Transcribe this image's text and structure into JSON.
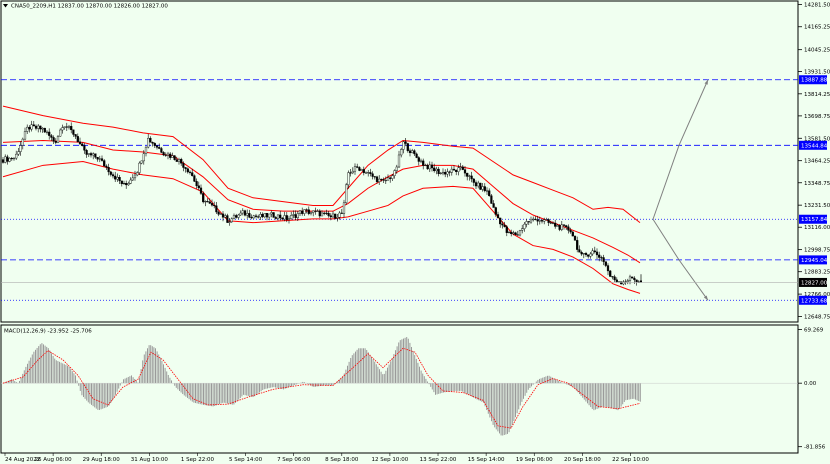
{
  "colors": {
    "background": "#f0fff0",
    "bollinger": "#ff0000",
    "candle": "#000000",
    "level_line": "#0000ff",
    "projection": "#808080",
    "macd_hist": "#9a9a9a",
    "macd_signal": "#ff0000",
    "price_tag": "#000000",
    "level_tag": "#0000ff"
  },
  "header": {
    "symbol_info": "CNA50_2209,H1  12837.00 12870.00 12826.00 12827.00",
    "macd_label": "MACD(12,26,9) -23.952 -25.706"
  },
  "chart_data": [
    {
      "type": "candlestick",
      "panel": "price",
      "ylim": [
        12620,
        14300
      ],
      "y_ticks": [
        "14281.50",
        "14165.25",
        "14045.25",
        "13931.50",
        "13814.25",
        "13698.75",
        "13581.50",
        "13464.25",
        "13348.75",
        "13231.50",
        "13116.00",
        "12998.75",
        "12883.25",
        "12766.00",
        "12648.75"
      ],
      "x_ticks": [
        "24 Aug 2022",
        "26 Aug 06:00",
        "29 Aug 18:00",
        "31 Aug 10:00",
        "1 Sep 22:00",
        "5 Sep 14:00",
        "7 Sep 06:00",
        "8 Sep 18:00",
        "12 Sep 10:00",
        "13 Sep 22:00",
        "15 Sep 14:00",
        "19 Sep 06:00",
        "20 Sep 18:00",
        "22 Sep 10:00"
      ],
      "close_path": [
        [
          0,
          13470
        ],
        [
          12,
          13480
        ],
        [
          25,
          13640
        ],
        [
          40,
          13630
        ],
        [
          52,
          13560
        ],
        [
          60,
          13660
        ],
        [
          72,
          13600
        ],
        [
          82,
          13500
        ],
        [
          95,
          13480
        ],
        [
          110,
          13390
        ],
        [
          122,
          13330
        ],
        [
          135,
          13420
        ],
        [
          145,
          13580
        ],
        [
          160,
          13510
        ],
        [
          175,
          13470
        ],
        [
          188,
          13400
        ],
        [
          200,
          13260
        ],
        [
          215,
          13200
        ],
        [
          225,
          13150
        ],
        [
          240,
          13190
        ],
        [
          255,
          13170
        ],
        [
          270,
          13180
        ],
        [
          285,
          13160
        ],
        [
          300,
          13200
        ],
        [
          315,
          13190
        ],
        [
          328,
          13170
        ],
        [
          340,
          13190
        ],
        [
          345,
          13400
        ],
        [
          355,
          13430
        ],
        [
          370,
          13380
        ],
        [
          380,
          13350
        ],
        [
          392,
          13400
        ],
        [
          400,
          13560
        ],
        [
          410,
          13500
        ],
        [
          422,
          13440
        ],
        [
          438,
          13400
        ],
        [
          450,
          13410
        ],
        [
          460,
          13420
        ],
        [
          470,
          13350
        ],
        [
          485,
          13300
        ],
        [
          492,
          13190
        ],
        [
          505,
          13080
        ],
        [
          515,
          13080
        ],
        [
          522,
          13140
        ],
        [
          535,
          13160
        ],
        [
          545,
          13140
        ],
        [
          555,
          13120
        ],
        [
          568,
          13100
        ],
        [
          578,
          12960
        ],
        [
          590,
          12990
        ],
        [
          600,
          12950
        ],
        [
          608,
          12850
        ],
        [
          618,
          12830
        ],
        [
          630,
          12850
        ],
        [
          637,
          12827
        ]
      ],
      "bb_upper": [
        [
          0,
          13750
        ],
        [
          40,
          13700
        ],
        [
          80,
          13660
        ],
        [
          110,
          13640
        ],
        [
          140,
          13610
        ],
        [
          170,
          13590
        ],
        [
          200,
          13470
        ],
        [
          225,
          13320
        ],
        [
          250,
          13270
        ],
        [
          280,
          13250
        ],
        [
          310,
          13230
        ],
        [
          330,
          13230
        ],
        [
          345,
          13320
        ],
        [
          365,
          13440
        ],
        [
          385,
          13520
        ],
        [
          400,
          13570
        ],
        [
          420,
          13560
        ],
        [
          450,
          13540
        ],
        [
          470,
          13530
        ],
        [
          490,
          13460
        ],
        [
          510,
          13390
        ],
        [
          530,
          13350
        ],
        [
          550,
          13310
        ],
        [
          570,
          13270
        ],
        [
          590,
          13210
        ],
        [
          605,
          13220
        ],
        [
          620,
          13210
        ],
        [
          637,
          13140
        ]
      ],
      "bb_middle": [
        [
          0,
          13560
        ],
        [
          40,
          13570
        ],
        [
          80,
          13560
        ],
        [
          110,
          13520
        ],
        [
          140,
          13510
        ],
        [
          170,
          13490
        ],
        [
          200,
          13380
        ],
        [
          225,
          13260
        ],
        [
          250,
          13210
        ],
        [
          280,
          13200
        ],
        [
          310,
          13200
        ],
        [
          330,
          13200
        ],
        [
          345,
          13240
        ],
        [
          365,
          13320
        ],
        [
          385,
          13380
        ],
        [
          400,
          13420
        ],
        [
          420,
          13440
        ],
        [
          450,
          13440
        ],
        [
          470,
          13420
        ],
        [
          490,
          13330
        ],
        [
          510,
          13240
        ],
        [
          530,
          13180
        ],
        [
          550,
          13140
        ],
        [
          570,
          13100
        ],
        [
          590,
          13060
        ],
        [
          610,
          13010
        ],
        [
          625,
          12970
        ],
        [
          637,
          12930
        ]
      ],
      "bb_lower": [
        [
          0,
          13380
        ],
        [
          40,
          13440
        ],
        [
          80,
          13460
        ],
        [
          110,
          13420
        ],
        [
          140,
          13390
        ],
        [
          170,
          13370
        ],
        [
          200,
          13300
        ],
        [
          225,
          13150
        ],
        [
          250,
          13140
        ],
        [
          280,
          13150
        ],
        [
          310,
          13160
        ],
        [
          330,
          13160
        ],
        [
          345,
          13170
        ],
        [
          365,
          13200
        ],
        [
          385,
          13230
        ],
        [
          400,
          13280
        ],
        [
          420,
          13320
        ],
        [
          450,
          13330
        ],
        [
          470,
          13320
        ],
        [
          490,
          13200
        ],
        [
          510,
          13080
        ],
        [
          530,
          13020
        ],
        [
          550,
          13000
        ],
        [
          570,
          12960
        ],
        [
          590,
          12900
        ],
        [
          610,
          12820
        ],
        [
          625,
          12790
        ],
        [
          637,
          12770
        ]
      ],
      "levels": [
        {
          "label": "13887.88",
          "style": "dashed",
          "value": 13887.88
        },
        {
          "label": "13544.84",
          "style": "dashed",
          "value": 13544.84
        },
        {
          "label": "13157.84",
          "style": "dotted",
          "value": 13157.84
        },
        {
          "label": "12945.04",
          "style": "dashed",
          "value": 12945.04
        },
        {
          "label": "12733.68",
          "style": "dotted",
          "value": 12733.68
        }
      ],
      "current_price": {
        "label": "12827.00",
        "value": 12827
      },
      "projections": [
        {
          "from": [
            650,
            13157.84
          ],
          "via": [
            676,
            13544.84
          ],
          "to": [
            705,
            13887.88
          ]
        },
        {
          "from": [
            650,
            13157.84
          ],
          "via": [
            676,
            12945.04
          ],
          "to": [
            705,
            12733.68
          ]
        }
      ]
    },
    {
      "type": "bar",
      "panel": "macd",
      "ylim": [
        -90,
        75
      ],
      "y_ticks": [
        "69.269",
        "0.00",
        "-81.856"
      ],
      "histogram_path": [
        [
          0,
          0
        ],
        [
          8,
          5
        ],
        [
          15,
          0
        ],
        [
          22,
          20
        ],
        [
          30,
          40
        ],
        [
          38,
          52
        ],
        [
          45,
          45
        ],
        [
          52,
          30
        ],
        [
          60,
          25
        ],
        [
          65,
          22
        ],
        [
          72,
          10
        ],
        [
          78,
          -15
        ],
        [
          85,
          -25
        ],
        [
          95,
          -35
        ],
        [
          105,
          -30
        ],
        [
          110,
          -20
        ],
        [
          120,
          5
        ],
        [
          128,
          10
        ],
        [
          135,
          0
        ],
        [
          140,
          35
        ],
        [
          146,
          50
        ],
        [
          152,
          45
        ],
        [
          158,
          30
        ],
        [
          165,
          10
        ],
        [
          172,
          -5
        ],
        [
          180,
          -15
        ],
        [
          190,
          -25
        ],
        [
          200,
          -28
        ],
        [
          210,
          -30
        ],
        [
          220,
          -25
        ],
        [
          230,
          -28
        ],
        [
          240,
          -15
        ],
        [
          250,
          -18
        ],
        [
          260,
          -8
        ],
        [
          270,
          -5
        ],
        [
          280,
          -8
        ],
        [
          290,
          -3
        ],
        [
          300,
          2
        ],
        [
          310,
          -5
        ],
        [
          320,
          -3
        ],
        [
          330,
          -3
        ],
        [
          340,
          10
        ],
        [
          348,
          35
        ],
        [
          355,
          45
        ],
        [
          362,
          45
        ],
        [
          370,
          30
        ],
        [
          380,
          10
        ],
        [
          388,
          30
        ],
        [
          396,
          55
        ],
        [
          404,
          60
        ],
        [
          410,
          40
        ],
        [
          418,
          15
        ],
        [
          425,
          0
        ],
        [
          432,
          -15
        ],
        [
          440,
          -12
        ],
        [
          450,
          -10
        ],
        [
          458,
          -10
        ],
        [
          465,
          -15
        ],
        [
          472,
          -20
        ],
        [
          480,
          -25
        ],
        [
          490,
          -55
        ],
        [
          498,
          -68
        ],
        [
          505,
          -65
        ],
        [
          510,
          -50
        ],
        [
          518,
          -25
        ],
        [
          525,
          -8
        ],
        [
          535,
          5
        ],
        [
          545,
          10
        ],
        [
          552,
          5
        ],
        [
          560,
          0
        ],
        [
          570,
          -5
        ],
        [
          580,
          -20
        ],
        [
          590,
          -35
        ],
        [
          600,
          -30
        ],
        [
          608,
          -32
        ],
        [
          615,
          -35
        ],
        [
          622,
          -22
        ],
        [
          630,
          -20
        ],
        [
          637,
          -24
        ]
      ],
      "signal_path": [
        [
          0,
          0
        ],
        [
          20,
          8
        ],
        [
          35,
          30
        ],
        [
          45,
          42
        ],
        [
          60,
          30
        ],
        [
          75,
          10
        ],
        [
          90,
          -20
        ],
        [
          105,
          -28
        ],
        [
          120,
          -5
        ],
        [
          135,
          5
        ],
        [
          148,
          40
        ],
        [
          160,
          30
        ],
        [
          175,
          5
        ],
        [
          190,
          -20
        ],
        [
          205,
          -28
        ],
        [
          225,
          -27
        ],
        [
          245,
          -18
        ],
        [
          270,
          -8
        ],
        [
          300,
          -2
        ],
        [
          330,
          -3
        ],
        [
          350,
          20
        ],
        [
          365,
          38
        ],
        [
          380,
          20
        ],
        [
          400,
          45
        ],
        [
          412,
          40
        ],
        [
          425,
          10
        ],
        [
          440,
          -10
        ],
        [
          460,
          -12
        ],
        [
          480,
          -22
        ],
        [
          495,
          -55
        ],
        [
          508,
          -58
        ],
        [
          520,
          -30
        ],
        [
          535,
          -2
        ],
        [
          550,
          6
        ],
        [
          565,
          0
        ],
        [
          580,
          -15
        ],
        [
          595,
          -30
        ],
        [
          615,
          -33
        ],
        [
          637,
          -26
        ]
      ]
    }
  ]
}
